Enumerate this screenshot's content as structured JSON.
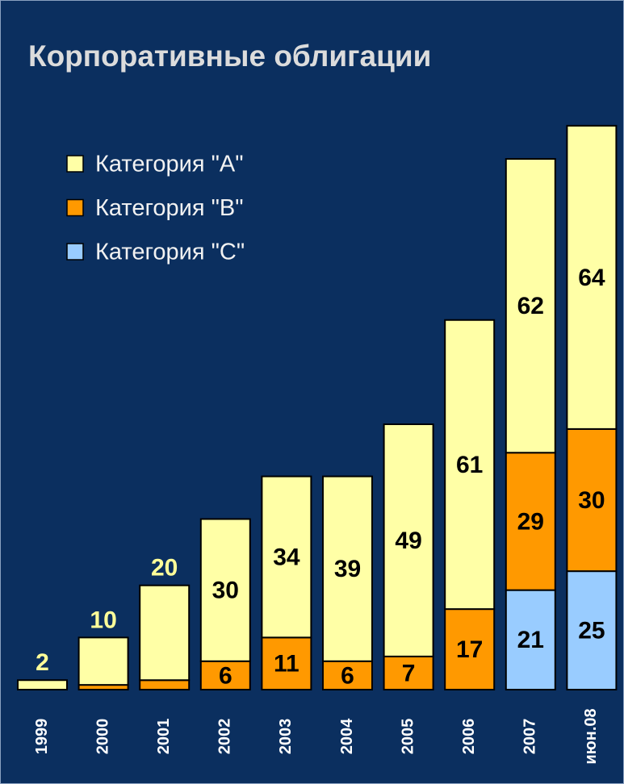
{
  "chart_data": {
    "type": "stacked_bar",
    "title": "Корпоративные облигации",
    "categories": [
      "1999",
      "2000",
      "2001",
      "2002",
      "2003",
      "2004",
      "2005",
      "2006",
      "2007",
      "июн.08"
    ],
    "series": [
      {
        "name": "Категория \"C\"",
        "color": "#99ccff",
        "values": [
          null,
          null,
          null,
          null,
          null,
          null,
          null,
          null,
          21,
          25
        ]
      },
      {
        "name": "Категория \"B\"",
        "color": "#ff9900",
        "values": [
          null,
          1,
          2,
          6,
          11,
          6,
          7,
          17,
          29,
          30
        ]
      },
      {
        "name": "Категория \"A\"",
        "color": "#ffffa6",
        "values": [
          2,
          10,
          20,
          30,
          34,
          39,
          49,
          61,
          62,
          64
        ]
      }
    ],
    "legend": "top-left"
  }
}
